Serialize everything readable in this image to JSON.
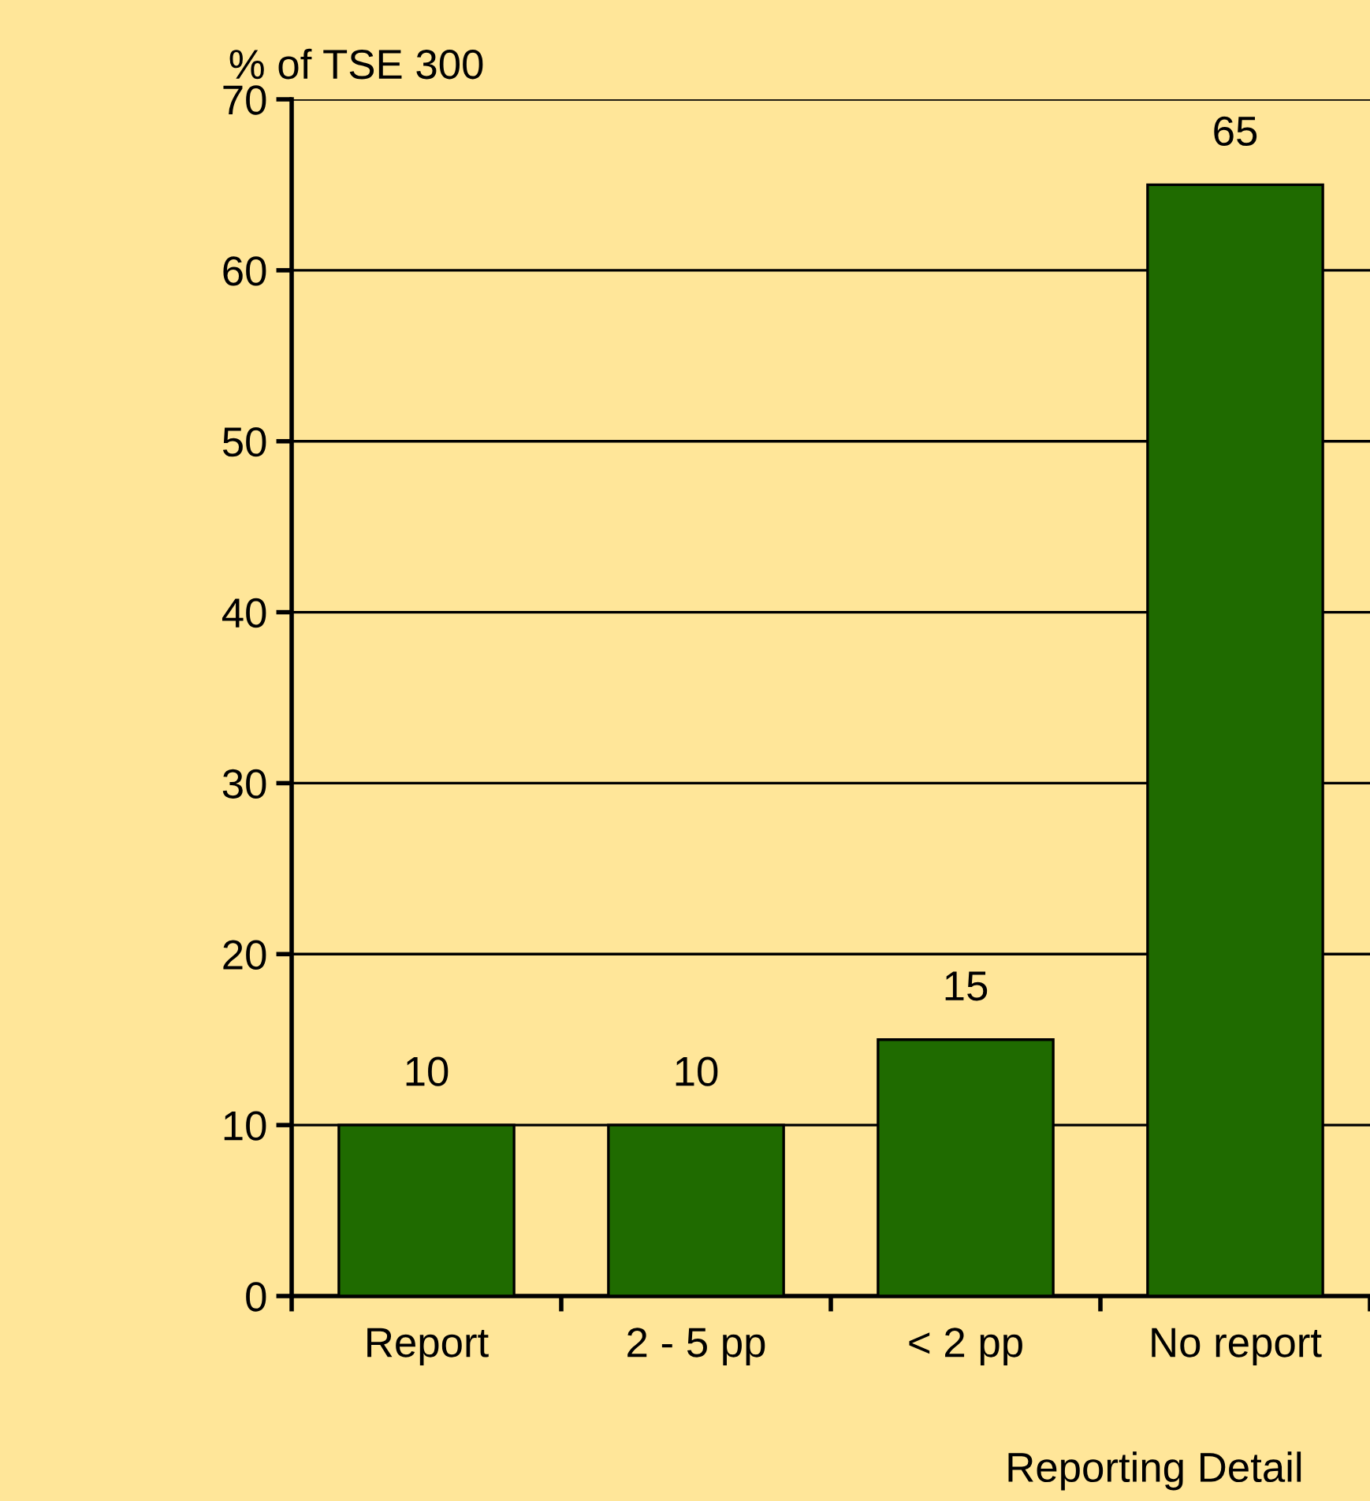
{
  "chart_data": {
    "type": "bar",
    "ylabel": "% of TSE 300",
    "xlabel": "Reporting Detail",
    "categories": [
      "Report",
      "2 - 5 pp",
      "< 2 pp",
      "No report"
    ],
    "values": [
      10,
      10,
      15,
      65
    ],
    "color": "#1f6b00",
    "ylim": [
      0,
      70
    ],
    "yticks": [
      0,
      10,
      20,
      30,
      40,
      50,
      60,
      70
    ],
    "grid": "y",
    "data_labels": true
  }
}
